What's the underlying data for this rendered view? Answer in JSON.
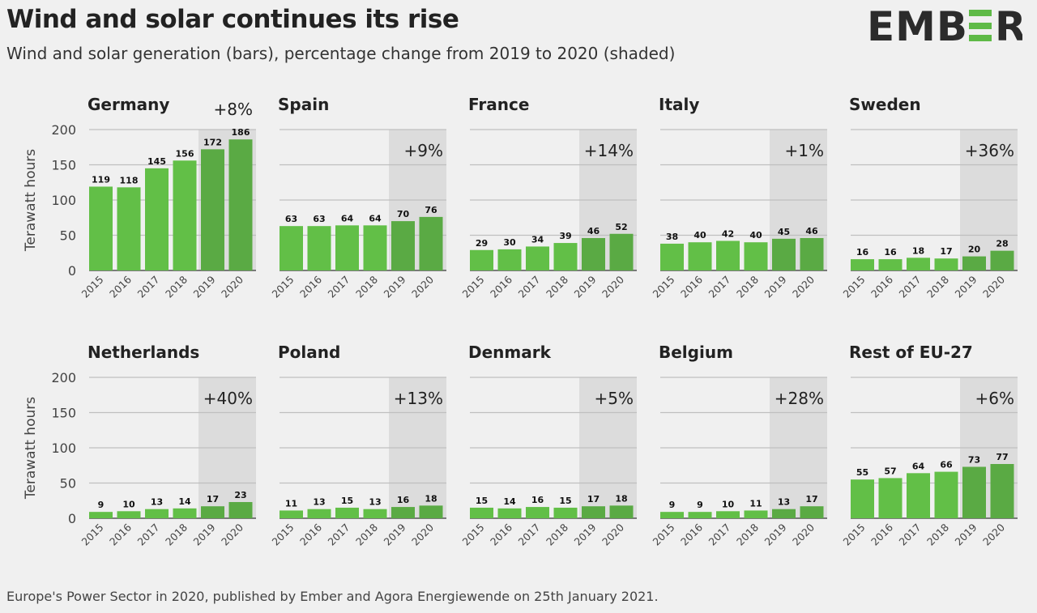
{
  "title": "Wind and solar continues its rise",
  "subtitle": "Wind and solar generation (bars), percentage change from 2019 to 2020 (shaded)",
  "logo": {
    "text": "EMBER",
    "accent": "#5fba47",
    "color": "#2b2b2b"
  },
  "footer": "Europe's Power Sector in 2020, published by Ember and Agora Energiewende on 25th January 2021.",
  "colors": {
    "bar": "#62bf47",
    "bar_shaded": "#5aaa44",
    "shade": "#dcdcdc",
    "grid": "#bfbfbf",
    "axis": "#555555"
  },
  "chart_data": [
    {
      "type": "bar",
      "title": "Germany",
      "categories": [
        "2015",
        "2016",
        "2017",
        "2018",
        "2019",
        "2020"
      ],
      "values": [
        119,
        118,
        145,
        156,
        172,
        186
      ],
      "change": "+8%",
      "ylabel": "Terawatt hours",
      "ylim": [
        0,
        200
      ],
      "yticks": [
        0,
        50,
        100,
        150,
        200
      ]
    },
    {
      "type": "bar",
      "title": "Spain",
      "categories": [
        "2015",
        "2016",
        "2017",
        "2018",
        "2019",
        "2020"
      ],
      "values": [
        63,
        63,
        64,
        64,
        70,
        76
      ],
      "change": "+9%",
      "ylabel": "",
      "ylim": [
        0,
        200
      ],
      "yticks": [
        0,
        50,
        100,
        150,
        200
      ]
    },
    {
      "type": "bar",
      "title": "France",
      "categories": [
        "2015",
        "2016",
        "2017",
        "2018",
        "2019",
        "2020"
      ],
      "values": [
        29,
        30,
        34,
        39,
        46,
        52
      ],
      "change": "+14%",
      "ylabel": "",
      "ylim": [
        0,
        200
      ],
      "yticks": [
        0,
        50,
        100,
        150,
        200
      ]
    },
    {
      "type": "bar",
      "title": "Italy",
      "categories": [
        "2015",
        "2016",
        "2017",
        "2018",
        "2019",
        "2020"
      ],
      "values": [
        38,
        40,
        42,
        40,
        45,
        46
      ],
      "change": "+1%",
      "ylabel": "",
      "ylim": [
        0,
        200
      ],
      "yticks": [
        0,
        50,
        100,
        150,
        200
      ]
    },
    {
      "type": "bar",
      "title": "Sweden",
      "categories": [
        "2015",
        "2016",
        "2017",
        "2018",
        "2019",
        "2020"
      ],
      "values": [
        16,
        16,
        18,
        17,
        20,
        28
      ],
      "change": "+36%",
      "ylabel": "",
      "ylim": [
        0,
        200
      ],
      "yticks": [
        0,
        50,
        100,
        150,
        200
      ]
    },
    {
      "type": "bar",
      "title": "Netherlands",
      "categories": [
        "2015",
        "2016",
        "2017",
        "2018",
        "2019",
        "2020"
      ],
      "values": [
        9,
        10,
        13,
        14,
        17,
        23
      ],
      "change": "+40%",
      "ylabel": "Terawatt hours",
      "ylim": [
        0,
        200
      ],
      "yticks": [
        0,
        50,
        100,
        150,
        200
      ]
    },
    {
      "type": "bar",
      "title": "Poland",
      "categories": [
        "2015",
        "2016",
        "2017",
        "2018",
        "2019",
        "2020"
      ],
      "values": [
        11,
        13,
        15,
        13,
        16,
        18
      ],
      "change": "+13%",
      "ylabel": "",
      "ylim": [
        0,
        200
      ],
      "yticks": [
        0,
        50,
        100,
        150,
        200
      ]
    },
    {
      "type": "bar",
      "title": "Denmark",
      "categories": [
        "2015",
        "2016",
        "2017",
        "2018",
        "2019",
        "2020"
      ],
      "values": [
        15,
        14,
        16,
        15,
        17,
        18
      ],
      "change": "+5%",
      "ylabel": "",
      "ylim": [
        0,
        200
      ],
      "yticks": [
        0,
        50,
        100,
        150,
        200
      ]
    },
    {
      "type": "bar",
      "title": "Belgium",
      "categories": [
        "2015",
        "2016",
        "2017",
        "2018",
        "2019",
        "2020"
      ],
      "values": [
        9,
        9,
        10,
        11,
        13,
        17
      ],
      "change": "+28%",
      "ylabel": "",
      "ylim": [
        0,
        200
      ],
      "yticks": [
        0,
        50,
        100,
        150,
        200
      ]
    },
    {
      "type": "bar",
      "title": "Rest of EU-27",
      "categories": [
        "2015",
        "2016",
        "2017",
        "2018",
        "2019",
        "2020"
      ],
      "values": [
        55,
        57,
        64,
        66,
        73,
        77
      ],
      "change": "+6%",
      "ylabel": "",
      "ylim": [
        0,
        200
      ],
      "yticks": [
        0,
        50,
        100,
        150,
        200
      ]
    }
  ]
}
